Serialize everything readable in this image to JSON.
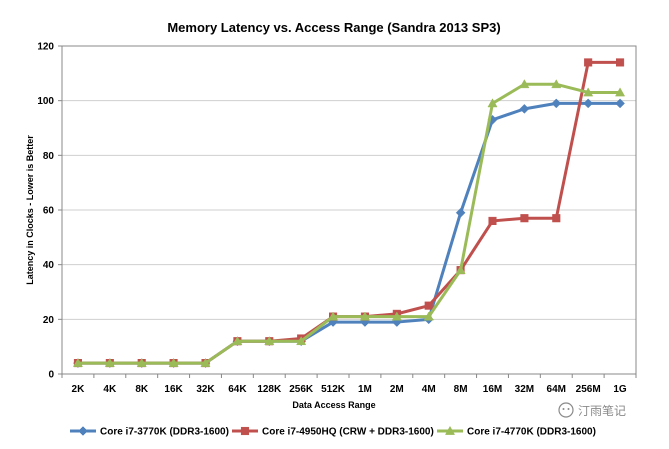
{
  "chart_data": {
    "type": "line",
    "title": "Memory Latency vs. Access Range (Sandra 2013 SP3)",
    "xlabel": "Data Access Range",
    "ylabel": "Latency in Clocks - Lower is Better",
    "categories": [
      "2K",
      "4K",
      "8K",
      "16K",
      "32K",
      "64K",
      "128K",
      "256K",
      "512K",
      "1M",
      "2M",
      "4M",
      "8M",
      "16M",
      "32M",
      "64M",
      "256M",
      "1G"
    ],
    "ylim": [
      0,
      120
    ],
    "yticks": [
      0,
      20,
      40,
      60,
      80,
      100,
      120
    ],
    "grid": true,
    "legend_position": "bottom",
    "series": [
      {
        "name": "Core i7-3770K (DDR3-1600)",
        "color": "#4f81bd",
        "marker": "diamond",
        "values": [
          4,
          4,
          4,
          4,
          4,
          12,
          12,
          12,
          19,
          19,
          19,
          20,
          59,
          93,
          97,
          99,
          99,
          99
        ]
      },
      {
        "name": "Core i7-4950HQ (CRW + DDR3-1600)",
        "color": "#c0504d",
        "marker": "square",
        "values": [
          4,
          4,
          4,
          4,
          4,
          12,
          12,
          13,
          21,
          21,
          22,
          25,
          38,
          56,
          57,
          57,
          114,
          114
        ]
      },
      {
        "name": "Core i7-4770K (DDR3-1600)",
        "color": "#9bbb59",
        "marker": "triangle",
        "values": [
          4,
          4,
          4,
          4,
          4,
          12,
          12,
          12,
          21,
          21,
          21,
          21,
          38,
          99,
          106,
          106,
          103,
          103
        ]
      }
    ]
  },
  "watermark": "汀雨笔记"
}
